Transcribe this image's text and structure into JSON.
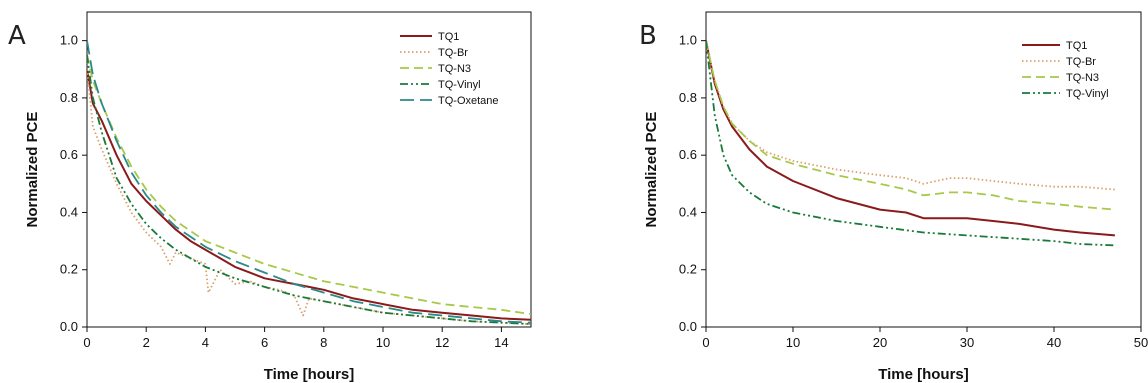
{
  "colors": {
    "TQ1": "#8b1a1a",
    "TQ-Br": "#d9a06a",
    "TQ-N3": "#a8c84a",
    "TQ-Vinyl": "#1a7a3a",
    "TQ-Oxetane": "#2a8a8a",
    "axis": "#111111"
  },
  "chart_data": [
    {
      "type": "line",
      "panel_label": "A",
      "xlabel": "Time [hours]",
      "ylabel": "Normalized PCE",
      "xlim": [
        0,
        15
      ],
      "ylim": [
        0,
        1.1
      ],
      "xticks": [
        0,
        2,
        4,
        6,
        8,
        10,
        12,
        14
      ],
      "yticks": [
        0.0,
        0.2,
        0.4,
        0.6,
        0.8,
        1.0
      ],
      "ytick_labels": [
        "0.0",
        "0.2",
        "0.4",
        "0.6",
        "0.8",
        "1.0"
      ],
      "legend_position": "top-right",
      "series": [
        {
          "name": "TQ1",
          "style": "solid",
          "x": [
            0,
            0.2,
            0.5,
            1,
            1.5,
            2,
            2.5,
            3,
            3.5,
            4,
            4.5,
            5,
            5.5,
            6,
            6.5,
            7,
            7.5,
            8,
            9,
            10,
            11,
            12,
            13,
            14,
            15
          ],
          "y": [
            0.9,
            0.78,
            0.72,
            0.6,
            0.5,
            0.44,
            0.39,
            0.34,
            0.3,
            0.27,
            0.24,
            0.21,
            0.19,
            0.17,
            0.16,
            0.15,
            0.14,
            0.13,
            0.1,
            0.08,
            0.06,
            0.05,
            0.04,
            0.03,
            0.025
          ]
        },
        {
          "name": "TQ-Br",
          "style": "dotted",
          "x": [
            0,
            0.2,
            0.5,
            1,
            1.5,
            2,
            2.5,
            2.8,
            3,
            3.5,
            4,
            4.1,
            4.5,
            5,
            5.5,
            6,
            6.5,
            7,
            7.3,
            7.5,
            8,
            9,
            10,
            11,
            12,
            13,
            14,
            15
          ],
          "y": [
            0.9,
            0.7,
            0.62,
            0.5,
            0.4,
            0.33,
            0.28,
            0.22,
            0.26,
            0.24,
            0.22,
            0.12,
            0.2,
            0.15,
            0.16,
            0.14,
            0.13,
            0.11,
            0.04,
            0.1,
            0.09,
            0.07,
            0.05,
            0.04,
            0.03,
            0.02,
            0.015,
            0.01
          ]
        },
        {
          "name": "TQ-N3",
          "style": "dashed",
          "x": [
            0,
            0.2,
            0.5,
            1,
            1.5,
            2,
            2.5,
            3,
            4,
            5,
            6,
            7,
            8,
            9,
            10,
            11,
            12,
            13,
            14,
            15
          ],
          "y": [
            0.95,
            0.86,
            0.78,
            0.66,
            0.56,
            0.48,
            0.42,
            0.37,
            0.3,
            0.26,
            0.22,
            0.19,
            0.16,
            0.14,
            0.12,
            0.1,
            0.08,
            0.07,
            0.06,
            0.045
          ]
        },
        {
          "name": "TQ-Vinyl",
          "style": "dashdotdot",
          "x": [
            0,
            0.2,
            0.5,
            1,
            1.5,
            2,
            2.5,
            3,
            4,
            5,
            6,
            7,
            8,
            9,
            10,
            11,
            12,
            13,
            14,
            15
          ],
          "y": [
            0.95,
            0.8,
            0.68,
            0.52,
            0.43,
            0.36,
            0.31,
            0.27,
            0.21,
            0.17,
            0.14,
            0.11,
            0.09,
            0.07,
            0.05,
            0.04,
            0.03,
            0.02,
            0.015,
            0.01
          ]
        },
        {
          "name": "TQ-Oxetane",
          "style": "longdash",
          "x": [
            0,
            0.2,
            0.5,
            1,
            1.5,
            2,
            2.5,
            3,
            4,
            5,
            6,
            7,
            8,
            9,
            10,
            11,
            12,
            13,
            14,
            15
          ],
          "y": [
            1.0,
            0.88,
            0.78,
            0.65,
            0.54,
            0.46,
            0.4,
            0.35,
            0.28,
            0.23,
            0.19,
            0.15,
            0.12,
            0.09,
            0.07,
            0.05,
            0.04,
            0.03,
            0.02,
            0.015
          ]
        }
      ]
    },
    {
      "type": "line",
      "panel_label": "B",
      "xlabel": "Time [hours]",
      "ylabel": "Normalized PCE",
      "xlim": [
        0,
        50
      ],
      "ylim": [
        0,
        1.1
      ],
      "xticks": [
        0,
        10,
        20,
        30,
        40,
        50
      ],
      "yticks": [
        0.0,
        0.2,
        0.4,
        0.6,
        0.8,
        1.0
      ],
      "ytick_labels": [
        "0.0",
        "0.2",
        "0.4",
        "0.6",
        "0.8",
        "1.0"
      ],
      "legend_position": "top-right",
      "series": [
        {
          "name": "TQ1",
          "style": "solid",
          "x": [
            0,
            1,
            2,
            3,
            5,
            7,
            10,
            15,
            20,
            23,
            25,
            28,
            30,
            33,
            36,
            40,
            43,
            47
          ],
          "y": [
            1.0,
            0.85,
            0.76,
            0.7,
            0.62,
            0.56,
            0.51,
            0.45,
            0.41,
            0.4,
            0.38,
            0.38,
            0.38,
            0.37,
            0.36,
            0.34,
            0.33,
            0.32
          ]
        },
        {
          "name": "TQ-Br",
          "style": "dotted",
          "x": [
            0,
            1,
            2,
            3,
            5,
            7,
            10,
            15,
            20,
            23,
            25,
            28,
            30,
            33,
            36,
            40,
            43,
            47
          ],
          "y": [
            1.0,
            0.86,
            0.77,
            0.71,
            0.65,
            0.61,
            0.58,
            0.55,
            0.53,
            0.52,
            0.5,
            0.52,
            0.52,
            0.51,
            0.5,
            0.49,
            0.49,
            0.48
          ]
        },
        {
          "name": "TQ-N3",
          "style": "dashed",
          "x": [
            0,
            1,
            2,
            3,
            5,
            7,
            10,
            15,
            20,
            23,
            25,
            28,
            30,
            33,
            36,
            40,
            43,
            47
          ],
          "y": [
            1.0,
            0.86,
            0.77,
            0.71,
            0.65,
            0.6,
            0.57,
            0.53,
            0.5,
            0.48,
            0.46,
            0.47,
            0.47,
            0.46,
            0.44,
            0.43,
            0.42,
            0.41
          ]
        },
        {
          "name": "TQ-Vinyl",
          "style": "dashdotdot",
          "x": [
            0,
            1,
            2,
            3,
            5,
            7,
            10,
            15,
            20,
            25,
            30,
            35,
            40,
            43,
            47
          ],
          "y": [
            1.0,
            0.74,
            0.6,
            0.53,
            0.47,
            0.43,
            0.4,
            0.37,
            0.35,
            0.33,
            0.32,
            0.31,
            0.3,
            0.29,
            0.285
          ]
        }
      ]
    }
  ]
}
